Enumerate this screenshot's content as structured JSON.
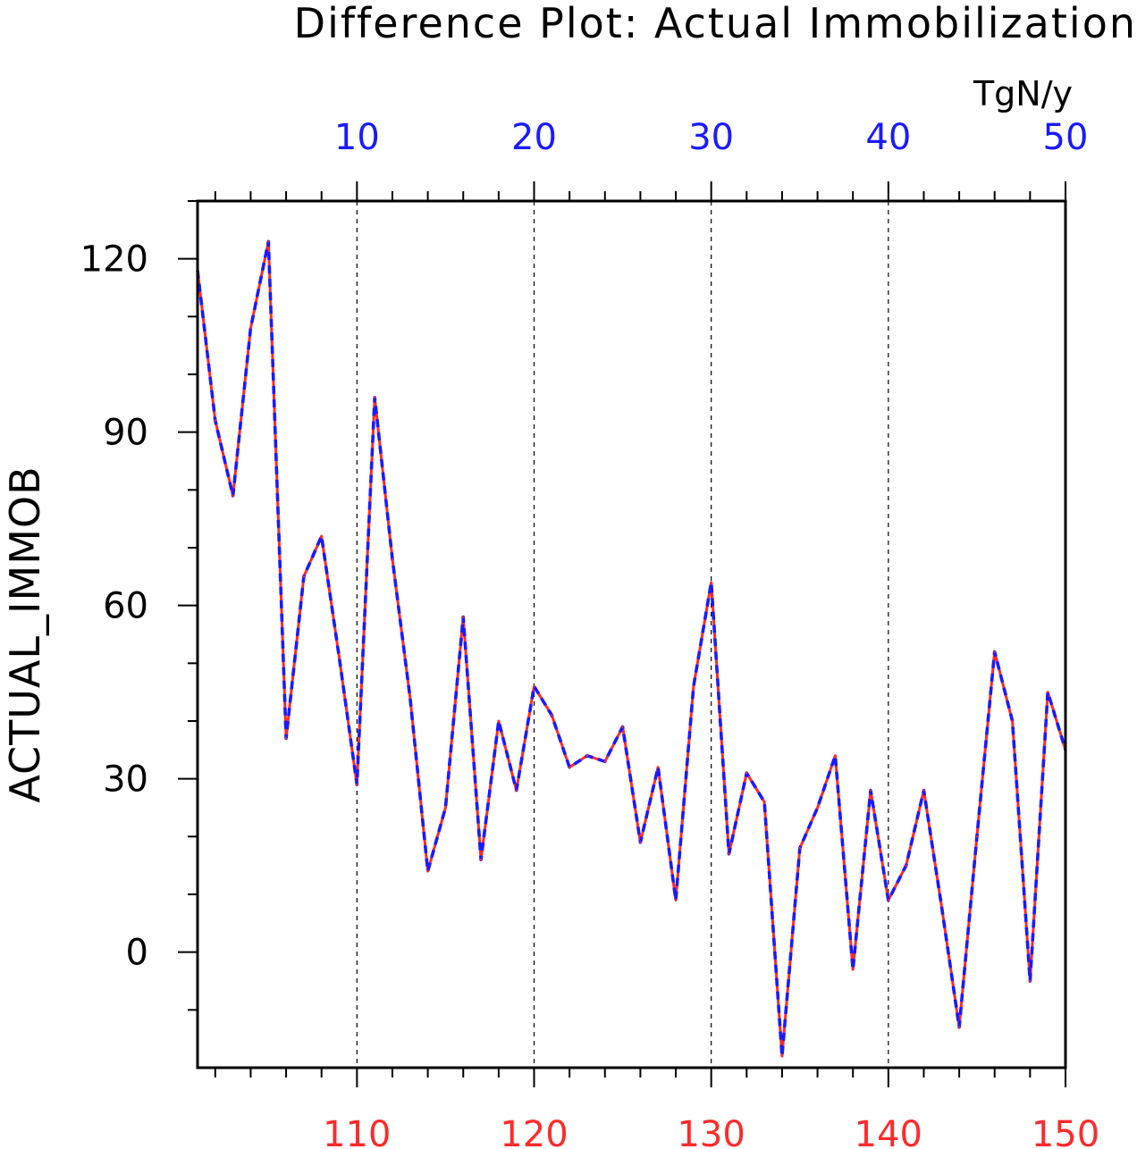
{
  "colors": {
    "top_axis_text": "#1a1aff",
    "bottom_axis_text": "#ff2a2a",
    "series_red": "#ff2a2a",
    "series_blue": "#1a1aff",
    "frame": "#000000",
    "grid": "#000000"
  },
  "chart_data": {
    "type": "line",
    "title": "Difference Plot: Actual Immobilization",
    "units": "TgN/y",
    "ylabel": "ACTUAL_IMMOB",
    "ylim": [
      -20,
      130
    ],
    "y_ticks": [
      0,
      30,
      60,
      90,
      120
    ],
    "y_tick_labels": [
      "0",
      "30",
      "60",
      "90",
      "120"
    ],
    "x_top": {
      "lim": [
        1,
        50
      ],
      "ticks": [
        10,
        20,
        30,
        40,
        50
      ],
      "tick_labels": [
        "10",
        "20",
        "30",
        "40",
        "50"
      ]
    },
    "x_bottom": {
      "lim": [
        101,
        150
      ],
      "ticks": [
        110,
        120,
        130,
        140,
        150
      ],
      "tick_labels": [
        "110",
        "120",
        "130",
        "140",
        "150"
      ]
    },
    "grid": "dashed vertical lines at x ticks",
    "x": [
      1,
      2,
      3,
      4,
      5,
      6,
      7,
      8,
      9,
      10,
      11,
      12,
      13,
      14,
      15,
      16,
      17,
      18,
      19,
      20,
      21,
      22,
      23,
      24,
      25,
      26,
      27,
      28,
      29,
      30,
      31,
      32,
      33,
      34,
      35,
      36,
      37,
      38,
      39,
      40,
      41,
      42,
      43,
      44,
      45,
      46,
      47,
      48,
      49,
      50
    ],
    "series": [
      {
        "line_style": "solid",
        "color": "#ff2a2a",
        "values": [
          118,
          92,
          79,
          108,
          123,
          37,
          65,
          72,
          51,
          29,
          96,
          68,
          44,
          14,
          25,
          58,
          16,
          40,
          28,
          46,
          41,
          32,
          34,
          33,
          39,
          19,
          32,
          9,
          46,
          64,
          17,
          31,
          26,
          -18,
          18,
          25,
          34,
          -3,
          28,
          9,
          15,
          28,
          8,
          -13,
          20,
          52,
          40,
          -5,
          45,
          35
        ]
      },
      {
        "line_style": "dashed",
        "color": "#1a1aff",
        "values": [
          118,
          92,
          79,
          108,
          123,
          37,
          65,
          72,
          51,
          29,
          96,
          68,
          44,
          14,
          25,
          58,
          16,
          40,
          28,
          46,
          41,
          32,
          34,
          33,
          39,
          19,
          32,
          9,
          46,
          64,
          17,
          31,
          26,
          -18,
          18,
          25,
          34,
          -3,
          28,
          9,
          15,
          28,
          8,
          -13,
          20,
          52,
          40,
          -5,
          45,
          35
        ]
      }
    ]
  }
}
